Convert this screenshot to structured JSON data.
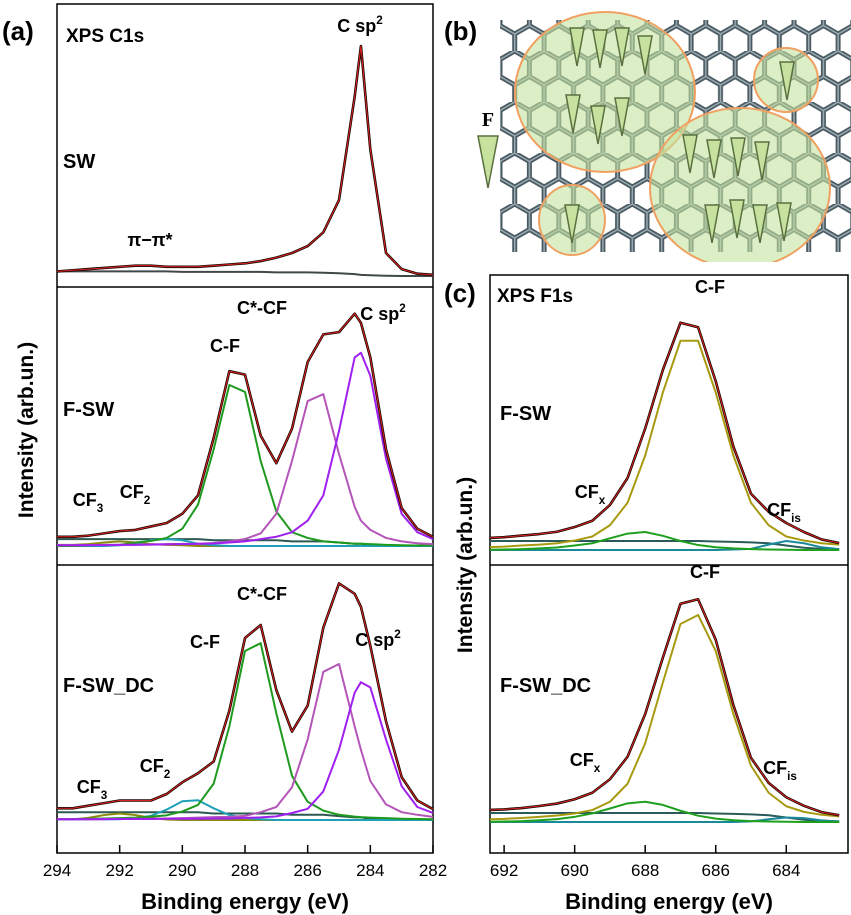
{
  "chart_data": [
    {
      "type": "line",
      "label": "(a)",
      "title": "XPS C1s",
      "xlabel": "Binding energy (eV)",
      "ylabel": "Intensity (arb.un.)",
      "xlim": [
        294,
        282
      ],
      "xticks": [
        294,
        292,
        290,
        288,
        286,
        284,
        282
      ],
      "fit_color": "#e02020",
      "x": [
        294,
        293.5,
        293,
        292.5,
        292,
        291.5,
        291,
        290.5,
        290,
        289.5,
        289,
        288.5,
        288,
        287.5,
        287,
        286.5,
        286,
        285.5,
        285,
        284.5,
        284.3,
        284,
        283.5,
        283,
        282.5,
        282
      ],
      "spectra": [
        {
          "label": "SW",
          "series": [
            {
              "color": "#404848",
              "values": [
                2,
                2,
                2,
                2,
                2,
                2,
                2,
                2,
                1.8,
                1.8,
                1.8,
                1.8,
                1.8,
                1.8,
                1.6,
                1.6,
                1.6,
                1.4,
                1.2,
                0.8,
                0.5,
                0.3,
                0.1,
                0,
                0,
                0
              ]
            },
            {
              "color": "#1a0a05",
              "fit": true,
              "values": [
                2,
                2.5,
                3,
                3.5,
                4,
                4.5,
                4.5,
                4,
                4,
                4,
                4.5,
                5,
                5.5,
                6.5,
                8,
                10,
                13,
                19,
                33,
                78,
                100,
                55,
                10,
                3,
                1,
                0.5
              ]
            }
          ],
          "annotations": [
            {
              "text": "C sp",
              "sup": "2"
            },
            {
              "text": "π−π*"
            }
          ]
        },
        {
          "label": "F-SW",
          "series": [
            {
              "color": "#2a5a50",
              "values": [
                3,
                3,
                3,
                3,
                3,
                3,
                3,
                3,
                3,
                3,
                2.5,
                2.5,
                2.5,
                2.5,
                2.5,
                2,
                2,
                2,
                1.5,
                1,
                1,
                0.5,
                0.3,
                0.2,
                0.1,
                0
              ]
            },
            {
              "color": "#8a8a10",
              "values": [
                0.5,
                0.5,
                0.8,
                1.5,
                2,
                1.5,
                0.8,
                0.5,
                0.3,
                0,
                0,
                0,
                0,
                0,
                0,
                0,
                0,
                0,
                0,
                0,
                0,
                0,
                0,
                0,
                0,
                0
              ]
            },
            {
              "color": "#20a0b8",
              "values": [
                0,
                0,
                0,
                0,
                0.3,
                1,
                2.5,
                3,
                2.5,
                1,
                0.3,
                0,
                0,
                0,
                0,
                0,
                0,
                0,
                0,
                0,
                0,
                0,
                0,
                0,
                0,
                0
              ]
            },
            {
              "color": "#1e9a1e",
              "values": [
                0,
                0,
                0.3,
                0.5,
                0.5,
                1.5,
                2.2,
                3.5,
                7.5,
                18,
                42,
                70,
                67,
                37,
                15,
                6,
                3.5,
                2,
                1.5,
                1,
                1,
                0.8,
                0.5,
                0.3,
                0.2,
                0.2
              ]
            },
            {
              "color": "#b455b8",
              "values": [
                0.3,
                0.3,
                0.4,
                0.5,
                0.5,
                0.6,
                0.7,
                0.8,
                0.9,
                1,
                1.3,
                2,
                3,
                5.5,
                14,
                37,
                63,
                66,
                40,
                17,
                11,
                7,
                3.5,
                2,
                1.2,
                0.8
              ]
            },
            {
              "color": "#a020f0",
              "values": [
                0.3,
                0.3,
                0.4,
                0.4,
                0.5,
                0.5,
                0.6,
                0.7,
                0.8,
                0.9,
                1.1,
                1.5,
                2,
                3,
                4,
                6,
                11,
                22,
                50,
                82,
                84,
                74,
                38,
                14,
                6,
                3
              ]
            },
            {
              "color": "#1a0a05",
              "fit": true,
              "values": [
                4,
                4,
                4.5,
                5.5,
                6.5,
                7,
                8.5,
                10,
                14,
                22,
                47,
                76,
                74.5,
                48,
                36,
                51,
                80,
                92,
                93,
                101,
                97,
                82,
                42,
                16.5,
                7.5,
                4
              ]
            }
          ],
          "annotations": [
            {
              "text": "C-F"
            },
            {
              "text": "C*-CF"
            },
            {
              "text": "C sp",
              "sup": "2"
            },
            {
              "text": "CF",
              "sub": "3"
            },
            {
              "text": "CF",
              "sub": "2"
            }
          ]
        },
        {
          "label": "F-SW_DC",
          "series": [
            {
              "color": "#2a5a50",
              "values": [
                3,
                3,
                3,
                3,
                3,
                3,
                3,
                3,
                3,
                3,
                2.5,
                2.5,
                2.5,
                2.5,
                2.5,
                2,
                2,
                2,
                1.5,
                1,
                1,
                0.5,
                0.3,
                0.2,
                0.1,
                0
              ]
            },
            {
              "color": "#8a8a10",
              "values": [
                0.2,
                0.2,
                0.8,
                1.9,
                2.5,
                1.9,
                0.8,
                0.2,
                0,
                0,
                0,
                0,
                0,
                0,
                0,
                0,
                0,
                0,
                0,
                0,
                0,
                0,
                0,
                0,
                0,
                0
              ]
            },
            {
              "color": "#20a0b8",
              "values": [
                0.3,
                0.3,
                0.3,
                0.3,
                0.3,
                0.7,
                1.6,
                4,
                7.2,
                7.6,
                4.5,
                1.9,
                0.8,
                0.3,
                0,
                0,
                0,
                0,
                0,
                0,
                0,
                0,
                0,
                0,
                0,
                0
              ]
            },
            {
              "color": "#1e9a1e",
              "values": [
                0.3,
                0.4,
                0.5,
                0.6,
                0.7,
                0.9,
                1.3,
                1.8,
                3.3,
                5.8,
                14,
                36,
                65,
                68,
                41,
                17,
                7,
                3.6,
                2,
                1.3,
                1.1,
                0.9,
                0.7,
                0.5,
                0.4,
                0.3
              ]
            },
            {
              "color": "#b455b8",
              "values": [
                0.3,
                0.3,
                0.3,
                0.4,
                0.4,
                0.5,
                0.5,
                0.6,
                0.7,
                0.9,
                1.1,
                1.2,
                1.6,
                3,
                5,
                12.6,
                31,
                57,
                60,
                36,
                27,
                15,
                6,
                3,
                2,
                1.2
              ]
            },
            {
              "color": "#a020f0",
              "values": [
                0.3,
                0.3,
                0.3,
                0.3,
                0.4,
                0.4,
                0.4,
                0.5,
                0.5,
                0.5,
                0.6,
                0.6,
                0.8,
                1,
                1.4,
                2.7,
                4.3,
                11,
                27,
                49,
                53,
                51,
                31,
                13,
                5,
                2.7
              ]
            },
            {
              "color": "#1a0a05",
              "fit": true,
              "values": [
                4.5,
                4.5,
                5.5,
                6.5,
                7.5,
                7.5,
                7.5,
                10,
                14.5,
                18,
                22.5,
                42,
                70,
                75,
                50,
                34,
                44,
                74,
                91,
                87,
                82,
                67,
                38,
                16.5,
                7.5,
                4.2
              ]
            }
          ],
          "annotations": [
            {
              "text": "C-F"
            },
            {
              "text": "C*-CF"
            },
            {
              "text": "C sp",
              "sup": "2"
            },
            {
              "text": "CF",
              "sub": "3"
            },
            {
              "text": "CF",
              "sub": "2"
            }
          ]
        }
      ]
    },
    {
      "type": "diagram",
      "label": "(b)",
      "legend": "F"
    },
    {
      "type": "line",
      "label": "(c)",
      "title": "XPS F1s",
      "xlabel": "Binding energy (eV)",
      "ylabel": "Intensity (arb.un.)",
      "xlim": [
        692.4,
        682.25
      ],
      "xticks": [
        692,
        690,
        688,
        686,
        684
      ],
      "fit_color": "#e02020",
      "x": [
        692.5,
        692,
        691.5,
        691,
        690.5,
        690,
        689.5,
        689,
        688.5,
        688,
        687.5,
        687,
        686.5,
        686,
        685.5,
        685,
        684.5,
        684,
        683.5,
        683,
        682.5
      ],
      "spectra": [
        {
          "label": "F-SW",
          "series": [
            {
              "color": "#2a5a5a",
              "values": [
                4,
                4,
                4,
                4,
                4,
                4,
                4,
                4,
                4,
                4,
                4,
                4,
                4,
                3.8,
                3.6,
                3.4,
                3,
                2,
                1,
                0.5,
                0.3
              ]
            },
            {
              "color": "#1a8a9a",
              "values": [
                0,
                0,
                0,
                0,
                0,
                0,
                0,
                0,
                0,
                0,
                0,
                0,
                0,
                0,
                0.2,
                0.5,
                2.4,
                4,
                3,
                1.2,
                0.4
              ]
            },
            {
              "color": "#1ea01e",
              "values": [
                0.1,
                0.2,
                0.4,
                0.7,
                1.1,
                2,
                3,
                5.2,
                7.3,
                8,
                6.3,
                4,
                2.2,
                1.2,
                0.7,
                0.4,
                0.2,
                0.1,
                0,
                0,
                0
              ]
            },
            {
              "color": "#a89a10",
              "values": [
                1.2,
                1.5,
                2,
                2.4,
                3,
                4.2,
                6,
                11,
                21,
                42,
                70,
                93,
                93,
                70,
                42,
                21,
                11,
                6,
                4.2,
                3,
                2.4
              ]
            },
            {
              "color": "#1a0a05",
              "fit": true,
              "values": [
                5.3,
                5.7,
                6.4,
                7.1,
                8.1,
                10.2,
                13,
                20,
                32,
                54,
                80,
                101,
                99,
                75,
                46,
                25,
                17,
                12,
                8,
                4.7,
                3.1
              ]
            }
          ],
          "annotations": [
            {
              "text": "C-F"
            },
            {
              "text": "CF",
              "sub": "x"
            },
            {
              "text": "CF",
              "sub": "is"
            }
          ]
        },
        {
          "label": "F-SW_DC",
          "series": [
            {
              "color": "#2a5a5a",
              "values": [
                4,
                4,
                4,
                4,
                4,
                4,
                4,
                4,
                4,
                4,
                4,
                4,
                4,
                3.8,
                3.6,
                3.4,
                3,
                2,
                1,
                0.5,
                0.3
              ]
            },
            {
              "color": "#1a8a9a",
              "values": [
                0,
                0,
                0,
                0,
                0,
                0,
                0,
                0,
                0,
                0,
                0,
                0,
                0,
                0,
                0,
                0.3,
                1.2,
                2,
                1.7,
                0.7,
                0.2
              ]
            },
            {
              "color": "#1ea01e",
              "values": [
                0.1,
                0.2,
                0.4,
                0.8,
                1.3,
                2.3,
                3.8,
                6,
                8.3,
                9,
                7.6,
                5,
                2.8,
                1.5,
                0.8,
                0.4,
                0.2,
                0.1,
                0,
                0,
                0
              ]
            },
            {
              "color": "#a89a10",
              "values": [
                1.2,
                1.4,
                1.8,
                2.3,
                2.9,
                3.8,
                5.3,
                9,
                17,
                35,
                62,
                88,
                92,
                76,
                48,
                25,
                13,
                7,
                4.5,
                3.2,
                2.5
              ]
            },
            {
              "color": "#1a0a05",
              "fit": true,
              "values": [
                5.3,
                5.6,
                6.2,
                7.1,
                8.2,
                10.1,
                13,
                19,
                29,
                48,
                73,
                97,
                99,
                81,
                52,
                28.5,
                17.4,
                11,
                7.2,
                4.4,
                3
              ]
            }
          ],
          "annotations": [
            {
              "text": "C-F"
            },
            {
              "text": "CF",
              "sub": "x"
            },
            {
              "text": "CF",
              "sub": "is"
            }
          ]
        }
      ]
    }
  ]
}
